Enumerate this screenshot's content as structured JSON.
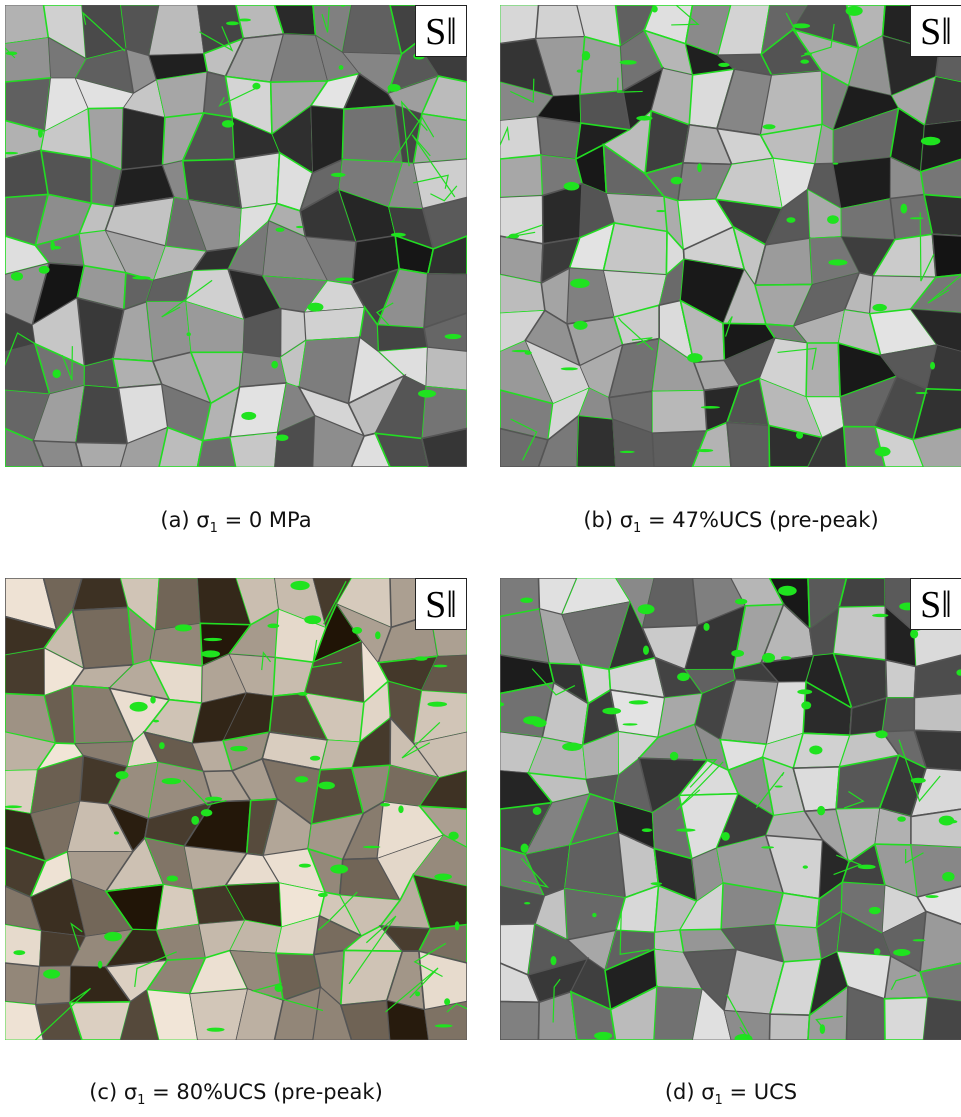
{
  "panels": [
    {
      "tag": "S‖",
      "caption_prefix": "(a) σ",
      "caption_sub": "1",
      "caption_suffix": " = 0 MPa"
    },
    {
      "tag": "S‖",
      "caption_prefix": "(b) σ",
      "caption_sub": "1",
      "caption_suffix": " = 47%UCS (pre-peak)"
    },
    {
      "tag": "S‖",
      "caption_prefix": "(c) σ",
      "caption_sub": "1",
      "caption_suffix": " = 80%UCS (pre-peak)"
    },
    {
      "tag": "S‖",
      "caption_prefix": "(d) σ",
      "caption_sub": "1",
      "caption_suffix": " = UCS"
    }
  ]
}
